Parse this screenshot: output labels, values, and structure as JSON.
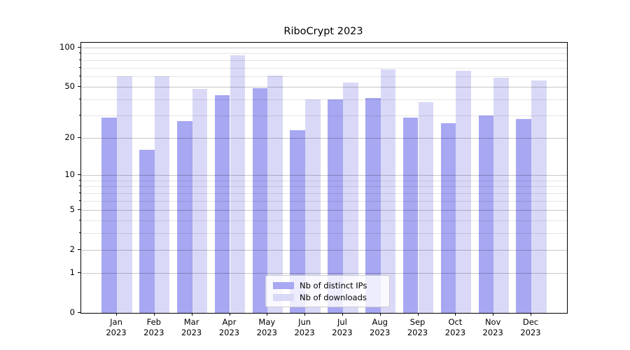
{
  "chart_data": {
    "type": "bar",
    "title": "RiboCrypt 2023",
    "categories": [
      "Jan",
      "Feb",
      "Mar",
      "Apr",
      "May",
      "Jun",
      "Jul",
      "Aug",
      "Sep",
      "Oct",
      "Nov",
      "Dec"
    ],
    "year_label": "2023",
    "series": [
      {
        "name": "Nb of distinct IPs",
        "color": "#a7a7f2",
        "values": [
          29,
          16,
          27,
          43,
          49,
          23,
          40,
          41,
          29,
          26,
          30,
          28
        ]
      },
      {
        "name": "Nb of downloads",
        "color": "#d9d9f7",
        "values": [
          60,
          60,
          48,
          87,
          61,
          40,
          54,
          68,
          38,
          66,
          59,
          56
        ]
      }
    ],
    "yscale": "log1p",
    "yticks": [
      0,
      1,
      2,
      5,
      10,
      20,
      50,
      100
    ],
    "yticks_minor": [
      3,
      4,
      6,
      7,
      8,
      9,
      30,
      40,
      60,
      70,
      80,
      90
    ],
    "ylim": [
      0,
      108.6
    ],
    "grid": "both, drawn over bars",
    "legend_position": "lower center",
    "xlabel": "",
    "ylabel": ""
  }
}
